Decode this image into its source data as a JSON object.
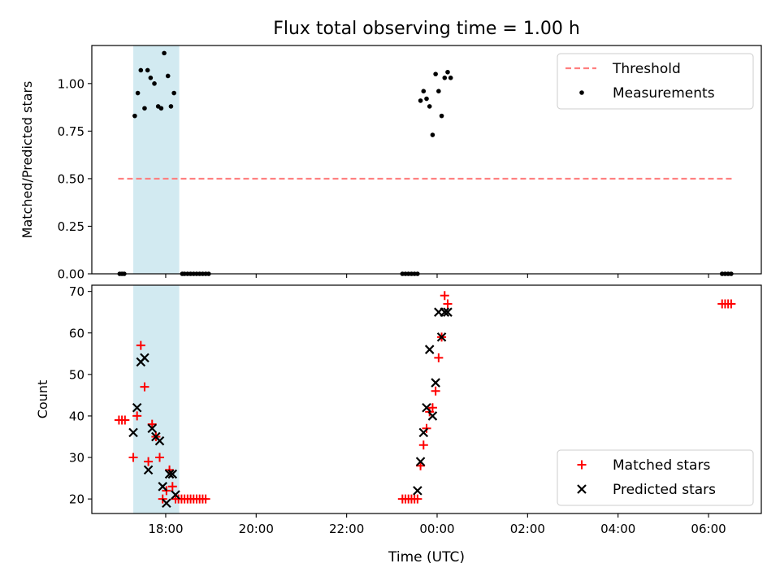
{
  "chart_data": {
    "title": "Flux total observing time = 1.00 h",
    "xlabel": "Time (UTC)",
    "x_unit": "hours",
    "xlim": [
      "16:22",
      "07:10"
    ],
    "xticks": [
      "18:00",
      "20:00",
      "22:00",
      "00:00",
      "02:00",
      "04:00",
      "06:00"
    ],
    "panels": [
      {
        "type": "scatter",
        "ylabel": "Matched/Predicted stars",
        "ylim": [
          0,
          1.2
        ],
        "yticks": [
          "0.00",
          "0.25",
          "0.50",
          "0.75",
          "1.00"
        ],
        "shaded_region": [
          "17:17",
          "18:18"
        ],
        "shaded_color": "#add8e6",
        "legend_position": "upper right",
        "series": [
          {
            "name": "Threshold",
            "kind": "hline",
            "y": 0.5,
            "x_range": [
              "16:57",
              "06:32"
            ],
            "color": "#ff7f7f",
            "style": "dashed"
          },
          {
            "name": "Measurements",
            "kind": "points",
            "color": "#000000",
            "points": [
              [
                "16:59",
                0.0
              ],
              [
                "17:02",
                0.0
              ],
              [
                "17:05",
                0.0
              ],
              [
                "17:19",
                0.83
              ],
              [
                "17:23",
                0.95
              ],
              [
                "17:27",
                1.07
              ],
              [
                "17:32",
                0.87
              ],
              [
                "17:36",
                1.07
              ],
              [
                "17:40",
                1.03
              ],
              [
                "17:45",
                1.0
              ],
              [
                "17:50",
                0.88
              ],
              [
                "17:54",
                0.87
              ],
              [
                "17:58",
                1.16
              ],
              [
                "18:03",
                1.04
              ],
              [
                "18:07",
                0.88
              ],
              [
                "18:11",
                0.95
              ],
              [
                "18:22",
                0.0
              ],
              [
                "18:25",
                0.0
              ],
              [
                "18:29",
                0.0
              ],
              [
                "18:33",
                0.0
              ],
              [
                "18:37",
                0.0
              ],
              [
                "18:41",
                0.0
              ],
              [
                "18:45",
                0.0
              ],
              [
                "18:49",
                0.0
              ],
              [
                "18:53",
                0.0
              ],
              [
                "18:57",
                0.0
              ],
              [
                "23:14",
                0.0
              ],
              [
                "23:18",
                0.0
              ],
              [
                "23:22",
                0.0
              ],
              [
                "23:26",
                0.0
              ],
              [
                "23:30",
                0.0
              ],
              [
                "23:34",
                0.0
              ],
              [
                "23:38",
                0.91
              ],
              [
                "23:42",
                0.96
              ],
              [
                "23:46",
                0.92
              ],
              [
                "23:50",
                0.88
              ],
              [
                "23:54",
                0.73
              ],
              [
                "23:58",
                1.05
              ],
              [
                "00:02",
                0.96
              ],
              [
                "00:06",
                0.83
              ],
              [
                "00:10",
                1.03
              ],
              [
                "00:14",
                1.06
              ],
              [
                "00:18",
                1.03
              ],
              [
                "06:18",
                0.0
              ],
              [
                "06:22",
                0.0
              ],
              [
                "06:26",
                0.0
              ],
              [
                "06:30",
                0.0
              ]
            ]
          }
        ]
      },
      {
        "type": "scatter",
        "ylabel": "Count",
        "ylim": [
          16.5,
          71.5
        ],
        "yticks": [
          "20",
          "30",
          "40",
          "50",
          "60",
          "70"
        ],
        "shaded_region": [
          "17:17",
          "18:18"
        ],
        "shaded_color": "#add8e6",
        "legend_position": "lower right",
        "series": [
          {
            "name": "Matched stars",
            "kind": "plus",
            "color": "#ff0000",
            "points": [
              [
                "16:58",
                39
              ],
              [
                "17:02",
                39
              ],
              [
                "17:06",
                39
              ],
              [
                "17:17",
                30
              ],
              [
                "17:22",
                40
              ],
              [
                "17:27",
                57
              ],
              [
                "17:32",
                47
              ],
              [
                "17:37",
                29
              ],
              [
                "17:42",
                38
              ],
              [
                "17:47",
                35
              ],
              [
                "17:52",
                30
              ],
              [
                "17:56",
                20
              ],
              [
                "18:01",
                22
              ],
              [
                "18:05",
                27
              ],
              [
                "18:09",
                23
              ],
              [
                "18:13",
                20
              ],
              [
                "18:17",
                20
              ],
              [
                "18:21",
                20
              ],
              [
                "18:25",
                20
              ],
              [
                "18:29",
                20
              ],
              [
                "18:33",
                20
              ],
              [
                "18:37",
                20
              ],
              [
                "18:41",
                20
              ],
              [
                "18:45",
                20
              ],
              [
                "18:49",
                20
              ],
              [
                "18:53",
                20
              ],
              [
                "23:14",
                20
              ],
              [
                "23:18",
                20
              ],
              [
                "23:22",
                20
              ],
              [
                "23:26",
                20
              ],
              [
                "23:30",
                20
              ],
              [
                "23:34",
                20
              ],
              [
                "23:38",
                28
              ],
              [
                "23:42",
                33
              ],
              [
                "23:46",
                37
              ],
              [
                "23:50",
                41
              ],
              [
                "23:54",
                42
              ],
              [
                "23:58",
                46
              ],
              [
                "00:02",
                54
              ],
              [
                "00:06",
                59
              ],
              [
                "00:10",
                69
              ],
              [
                "00:14",
                67
              ],
              [
                "06:18",
                67
              ],
              [
                "06:22",
                67
              ],
              [
                "06:26",
                67
              ],
              [
                "06:30",
                67
              ]
            ]
          },
          {
            "name": "Predicted stars",
            "kind": "x",
            "color": "#000000",
            "points": [
              [
                "17:17",
                36
              ],
              [
                "17:22",
                42
              ],
              [
                "17:27",
                53
              ],
              [
                "17:32",
                54
              ],
              [
                "17:37",
                27
              ],
              [
                "17:42",
                37
              ],
              [
                "17:47",
                35
              ],
              [
                "17:52",
                34
              ],
              [
                "17:56",
                23
              ],
              [
                "18:01",
                19
              ],
              [
                "18:05",
                26
              ],
              [
                "18:09",
                26
              ],
              [
                "18:13",
                21
              ],
              [
                "23:34",
                22
              ],
              [
                "23:38",
                29
              ],
              [
                "23:42",
                36
              ],
              [
                "23:46",
                42
              ],
              [
                "23:50",
                56
              ],
              [
                "23:54",
                40
              ],
              [
                "23:58",
                48
              ],
              [
                "00:02",
                65
              ],
              [
                "00:06",
                59
              ],
              [
                "00:10",
                65
              ],
              [
                "00:14",
                65
              ]
            ]
          }
        ]
      }
    ]
  }
}
